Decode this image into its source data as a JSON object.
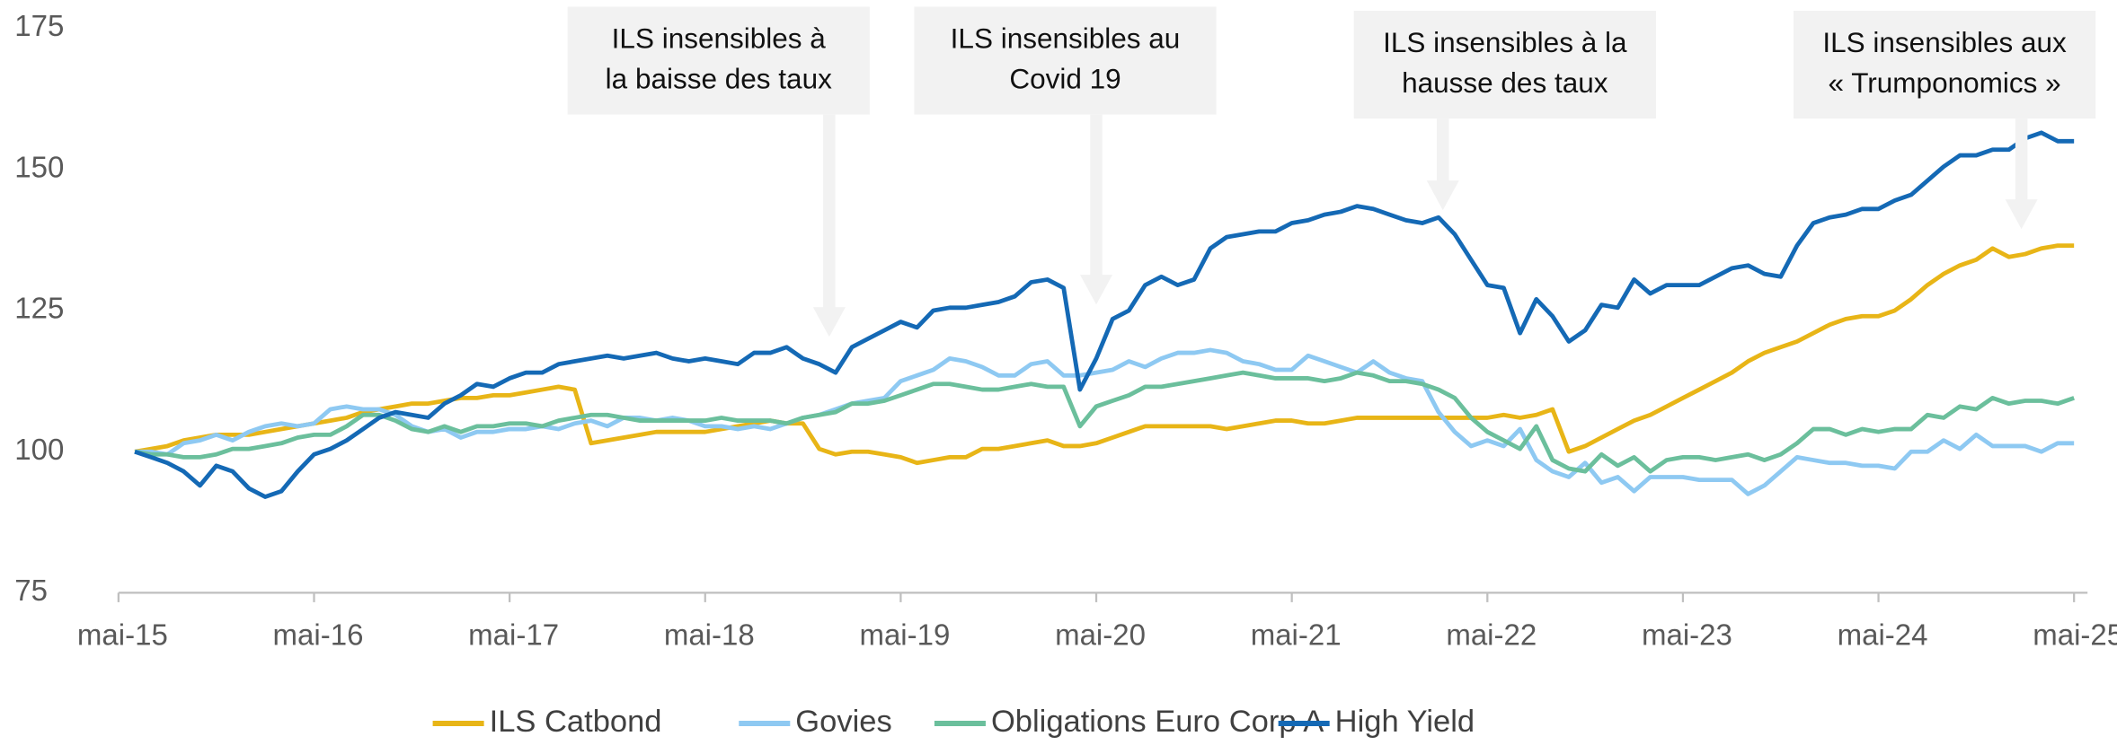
{
  "chart_data": {
    "type": "line",
    "categories": [
      "mai-15",
      null,
      null,
      null,
      null,
      null,
      null,
      null,
      null,
      null,
      null,
      null,
      "mai-16",
      null,
      null,
      null,
      null,
      null,
      null,
      null,
      null,
      null,
      null,
      null,
      "mai-17",
      null,
      null,
      null,
      null,
      null,
      null,
      null,
      null,
      null,
      null,
      null,
      "mai-18",
      null,
      null,
      null,
      null,
      null,
      null,
      null,
      null,
      null,
      null,
      null,
      "mai-19",
      null,
      null,
      null,
      null,
      null,
      null,
      null,
      null,
      null,
      null,
      null,
      "mai-20",
      null,
      null,
      null,
      null,
      null,
      null,
      null,
      null,
      null,
      null,
      null,
      "mai-21",
      null,
      null,
      null,
      null,
      null,
      null,
      null,
      null,
      null,
      null,
      null,
      "mai-22",
      null,
      null,
      null,
      null,
      null,
      null,
      null,
      null,
      null,
      null,
      null,
      "mai-23",
      null,
      null,
      null,
      null,
      null,
      null,
      null,
      null,
      null,
      null,
      null,
      "mai-24",
      null,
      null,
      null,
      null,
      null,
      null,
      null,
      null,
      null,
      null,
      null,
      "mai-25"
    ],
    "series": [
      {
        "name": "ILS Catbond",
        "color": "#e8b517",
        "values": [
          null,
          100,
          100.5,
          101,
          102,
          102.5,
          103,
          103,
          103,
          103.5,
          104,
          104.5,
          105,
          105.5,
          106,
          107,
          107.5,
          108,
          108.5,
          108.5,
          109,
          109.5,
          109.5,
          110,
          110,
          110.5,
          111,
          111.5,
          111,
          101.5,
          102,
          102.5,
          103,
          103.5,
          103.5,
          103.5,
          103.5,
          104,
          104.5,
          105,
          105.5,
          105,
          105,
          100.5,
          99.5,
          100,
          100,
          99.5,
          99,
          98,
          98.5,
          99,
          99,
          100.5,
          100.5,
          101,
          101.5,
          102,
          101,
          101,
          101.5,
          102.5,
          103.5,
          104.5,
          104.5,
          104.5,
          104.5,
          104.5,
          104,
          104.5,
          105,
          105.5,
          105.5,
          105,
          105,
          105.5,
          106,
          106,
          106,
          106,
          106,
          106,
          106,
          106,
          106,
          106.5,
          106,
          106.5,
          107.5,
          100,
          101,
          102.5,
          104,
          105.5,
          106.5,
          108,
          109.5,
          111,
          112.5,
          114,
          116,
          117.5,
          118.5,
          119.5,
          121,
          122.5,
          123.5,
          124,
          124,
          125,
          127,
          129.5,
          131.5,
          133,
          134,
          136,
          134.5,
          135,
          136,
          136.5,
          136.5
        ]
      },
      {
        "name": "Govies",
        "color": "#8ec9f2",
        "values": [
          null,
          100,
          100,
          99.5,
          101.5,
          102,
          103,
          102,
          103.5,
          104.5,
          105,
          104.5,
          105,
          107.5,
          108,
          107.5,
          107.5,
          106.5,
          104.5,
          103.5,
          104,
          102.5,
          103.5,
          103.5,
          104,
          104,
          104.5,
          104,
          105,
          105.5,
          104.5,
          106,
          106,
          105.5,
          106,
          105.5,
          104.5,
          104.5,
          104,
          104.5,
          104,
          105,
          106,
          106.5,
          107.5,
          108.5,
          109,
          109.5,
          112.5,
          113.5,
          114.5,
          116.5,
          116,
          115,
          113.5,
          113.5,
          115.5,
          116,
          113.5,
          113.5,
          114,
          114.5,
          116,
          115,
          116.5,
          117.5,
          117.5,
          118,
          117.5,
          116,
          115.5,
          114.5,
          114.5,
          117,
          116,
          115,
          114,
          116,
          114,
          113,
          112.5,
          107,
          103.5,
          101,
          102,
          101,
          104,
          98.5,
          96.5,
          95.5,
          98,
          94.5,
          95.5,
          93,
          95.5,
          95.5,
          95.5,
          95,
          95,
          95,
          92.5,
          94,
          96.5,
          99,
          98.5,
          98,
          98,
          97.5,
          97.5,
          97,
          100,
          100,
          102,
          100.5,
          103,
          101,
          101,
          101,
          100,
          101.5,
          101.5
        ]
      },
      {
        "name": "Obligations Euro Corp A",
        "color": "#6bbf9c",
        "values": [
          null,
          100,
          99.5,
          99.5,
          99,
          99,
          99.5,
          100.5,
          100.5,
          101,
          101.5,
          102.5,
          103,
          103,
          104.5,
          106.5,
          106.5,
          105.5,
          104,
          103.5,
          104.5,
          103.5,
          104.5,
          104.5,
          105,
          105,
          104.5,
          105.5,
          106,
          106.5,
          106.5,
          106,
          105.5,
          105.5,
          105.5,
          105.5,
          105.5,
          106,
          105.5,
          105.5,
          105.5,
          105,
          106,
          106.5,
          107,
          108.5,
          108.5,
          109,
          110,
          111,
          112,
          112,
          111.5,
          111,
          111,
          111.5,
          112,
          111.5,
          111.5,
          104.5,
          108,
          109,
          110,
          111.5,
          111.5,
          112,
          112.5,
          113,
          113.5,
          114,
          113.5,
          113,
          113,
          113,
          112.5,
          113,
          114,
          113.5,
          112.5,
          112.5,
          112,
          111,
          109.5,
          106,
          103.5,
          102,
          100.5,
          104.5,
          98.5,
          97,
          96.5,
          99.5,
          97.5,
          99,
          96.5,
          98.5,
          99,
          99,
          98.5,
          99,
          99.5,
          98.5,
          99.5,
          101.5,
          104,
          104,
          103,
          104,
          103.5,
          104,
          104,
          106.5,
          106,
          108,
          107.5,
          109.5,
          108.5,
          109,
          109,
          108.5,
          109.5
        ]
      },
      {
        "name": "High Yield",
        "color": "#1469b5",
        "values": [
          null,
          100,
          99,
          98,
          96.5,
          94,
          97.5,
          96.5,
          93.5,
          92,
          93,
          96.5,
          99.5,
          100.5,
          102,
          104,
          106,
          107,
          106.5,
          106,
          108.5,
          110,
          112,
          111.5,
          113,
          114,
          114,
          115.5,
          116,
          116.5,
          117,
          116.5,
          117,
          117.5,
          116.5,
          116,
          116.5,
          116,
          115.5,
          117.5,
          117.5,
          118.5,
          116.5,
          115.5,
          114,
          118.5,
          120,
          121.5,
          123,
          122,
          125,
          125.5,
          125.5,
          126,
          126.5,
          127.5,
          130,
          130.5,
          129,
          111,
          116.5,
          123.5,
          125,
          129.5,
          131,
          129.5,
          130.5,
          136,
          138,
          138.5,
          139,
          139,
          140.5,
          141,
          142,
          142.5,
          143.5,
          143,
          142,
          141,
          140.5,
          141.5,
          138.5,
          134,
          129.5,
          129,
          121,
          127,
          124,
          119.5,
          121.5,
          126,
          125.5,
          130.5,
          128,
          129.5,
          129.5,
          129.5,
          131,
          132.5,
          133,
          131.5,
          131,
          136.5,
          140.5,
          141.5,
          142,
          143,
          143,
          144.5,
          145.5,
          148,
          150.5,
          152.5,
          152.5,
          153.5,
          153.5,
          155.5,
          156.5,
          155,
          155
        ]
      }
    ],
    "ylim": [
      75,
      175
    ],
    "yticks": [
      75,
      100,
      125,
      150,
      175
    ],
    "grid": false,
    "legend": "bottom",
    "annotations": [
      {
        "lines": [
          "ILS insensibles à",
          "la baisse des taux"
        ]
      },
      {
        "lines": [
          "ILS insensibles au",
          "Covid 19"
        ]
      },
      {
        "lines": [
          "ILS insensibles à la",
          "hausse des taux"
        ]
      },
      {
        "lines": [
          "ILS insensibles aux",
          "« Trumponomics »"
        ]
      }
    ]
  }
}
